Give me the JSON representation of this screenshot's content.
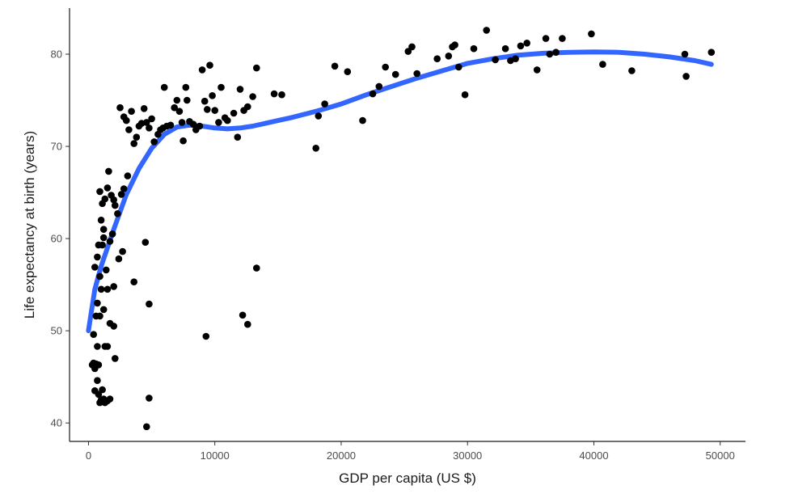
{
  "chart_data": {
    "type": "scatter",
    "title": "",
    "xlabel": "GDP per capita (US $)",
    "ylabel": "Life expectancy at birth (years)",
    "xlim": [
      -1500,
      52000
    ],
    "ylim": [
      38,
      85
    ],
    "xticks": [
      0,
      10000,
      20000,
      30000,
      40000,
      50000
    ],
    "yticks": [
      40,
      50,
      60,
      70,
      80
    ],
    "grid": false,
    "legend": "none",
    "colors": {
      "points": "#000000",
      "smooth": "#3366ff",
      "axis": "#1a1a1a"
    },
    "series": [
      {
        "type": "scatter",
        "points": [
          [
            300,
            46.3
          ],
          [
            400,
            46.5
          ],
          [
            500,
            45.9
          ],
          [
            500,
            43.5
          ],
          [
            600,
            46.4
          ],
          [
            700,
            44.6
          ],
          [
            700,
            48.3
          ],
          [
            800,
            46.3
          ],
          [
            800,
            43.1
          ],
          [
            900,
            42.2
          ],
          [
            1000,
            42.5
          ],
          [
            1100,
            43.6
          ],
          [
            1200,
            42.6
          ],
          [
            1300,
            42.2
          ],
          [
            1500,
            42.4
          ],
          [
            1700,
            42.6
          ],
          [
            400,
            49.6
          ],
          [
            600,
            51.6
          ],
          [
            700,
            53.0
          ],
          [
            900,
            51.6
          ],
          [
            1000,
            54.5
          ],
          [
            1200,
            52.3
          ],
          [
            1300,
            48.3
          ],
          [
            1500,
            48.3
          ],
          [
            1700,
            50.8
          ],
          [
            2000,
            50.5
          ],
          [
            2100,
            47.0
          ],
          [
            500,
            56.9
          ],
          [
            700,
            58.0
          ],
          [
            800,
            59.3
          ],
          [
            900,
            55.9
          ],
          [
            1000,
            62.0
          ],
          [
            1100,
            59.3
          ],
          [
            1200,
            60.1
          ],
          [
            1400,
            56.6
          ],
          [
            1500,
            54.5
          ],
          [
            1700,
            59.7
          ],
          [
            2000,
            54.8
          ],
          [
            2400,
            57.8
          ],
          [
            2700,
            58.6
          ],
          [
            900,
            65.1
          ],
          [
            1100,
            63.8
          ],
          [
            1300,
            64.3
          ],
          [
            1500,
            65.5
          ],
          [
            1600,
            67.3
          ],
          [
            1800,
            64.7
          ],
          [
            2000,
            64.2
          ],
          [
            2100,
            63.6
          ],
          [
            2300,
            62.7
          ],
          [
            2600,
            64.8
          ],
          [
            2800,
            65.4
          ],
          [
            3100,
            66.8
          ],
          [
            1900,
            60.5
          ],
          [
            1200,
            61.0
          ],
          [
            2500,
            74.2
          ],
          [
            2800,
            73.2
          ],
          [
            3000,
            72.8
          ],
          [
            3200,
            71.8
          ],
          [
            3400,
            73.8
          ],
          [
            3600,
            70.3
          ],
          [
            3800,
            71.0
          ],
          [
            4000,
            72.2
          ],
          [
            4200,
            72.5
          ],
          [
            4400,
            74.1
          ],
          [
            4600,
            72.6
          ],
          [
            4800,
            72.0
          ],
          [
            5000,
            73.0
          ],
          [
            3600,
            55.3
          ],
          [
            4500,
            59.6
          ],
          [
            4800,
            52.9
          ],
          [
            4800,
            42.7
          ],
          [
            4600,
            39.6
          ],
          [
            5200,
            70.5
          ],
          [
            5500,
            71.3
          ],
          [
            5700,
            71.8
          ],
          [
            5900,
            72.0
          ],
          [
            6000,
            76.4
          ],
          [
            6200,
            72.2
          ],
          [
            6500,
            72.3
          ],
          [
            6800,
            74.2
          ],
          [
            7000,
            75.0
          ],
          [
            7200,
            73.8
          ],
          [
            7400,
            72.6
          ],
          [
            7500,
            70.6
          ],
          [
            7700,
            76.4
          ],
          [
            7800,
            75.0
          ],
          [
            8000,
            72.7
          ],
          [
            8300,
            72.4
          ],
          [
            8500,
            71.8
          ],
          [
            8800,
            72.2
          ],
          [
            9000,
            78.3
          ],
          [
            9200,
            74.9
          ],
          [
            9400,
            74.0
          ],
          [
            9600,
            78.8
          ],
          [
            9800,
            75.5
          ],
          [
            10000,
            73.9
          ],
          [
            10300,
            72.6
          ],
          [
            10500,
            76.4
          ],
          [
            10800,
            73.1
          ],
          [
            11000,
            72.8
          ],
          [
            11500,
            73.6
          ],
          [
            11800,
            71.0
          ],
          [
            12000,
            76.2
          ],
          [
            12300,
            73.9
          ],
          [
            12600,
            74.3
          ],
          [
            13000,
            75.4
          ],
          [
            13300,
            78.5
          ],
          [
            9300,
            49.4
          ],
          [
            12200,
            51.7
          ],
          [
            12600,
            50.7
          ],
          [
            13300,
            56.8
          ],
          [
            14700,
            75.7
          ],
          [
            15300,
            75.6
          ],
          [
            18000,
            69.8
          ],
          [
            18200,
            73.3
          ],
          [
            18700,
            74.6
          ],
          [
            19500,
            78.7
          ],
          [
            20500,
            78.1
          ],
          [
            21700,
            72.8
          ],
          [
            22500,
            75.7
          ],
          [
            23000,
            76.5
          ],
          [
            23500,
            78.6
          ],
          [
            24300,
            77.8
          ],
          [
            25300,
            80.3
          ],
          [
            25600,
            80.8
          ],
          [
            26000,
            77.9
          ],
          [
            27600,
            79.5
          ],
          [
            28500,
            79.8
          ],
          [
            28800,
            80.8
          ],
          [
            29000,
            81.0
          ],
          [
            29300,
            78.6
          ],
          [
            29800,
            75.6
          ],
          [
            30500,
            80.6
          ],
          [
            31500,
            82.6
          ],
          [
            32200,
            79.4
          ],
          [
            33000,
            80.6
          ],
          [
            33400,
            79.3
          ],
          [
            33800,
            79.5
          ],
          [
            34200,
            80.9
          ],
          [
            34700,
            81.2
          ],
          [
            35500,
            78.3
          ],
          [
            36200,
            81.7
          ],
          [
            36500,
            80.0
          ],
          [
            37000,
            80.2
          ],
          [
            37500,
            81.7
          ],
          [
            39800,
            82.2
          ],
          [
            40700,
            78.9
          ],
          [
            43000,
            78.2
          ],
          [
            47200,
            80.0
          ],
          [
            47300,
            77.6
          ],
          [
            49300,
            80.2
          ]
        ]
      },
      {
        "type": "line",
        "points": [
          [
            0,
            50.0
          ],
          [
            500,
            54.5
          ],
          [
            1000,
            57.0
          ],
          [
            2000,
            61.0
          ],
          [
            3000,
            64.8
          ],
          [
            4000,
            67.6
          ],
          [
            5000,
            69.8
          ],
          [
            6000,
            71.3
          ],
          [
            7000,
            72.1
          ],
          [
            8000,
            72.3
          ],
          [
            9000,
            72.2
          ],
          [
            10000,
            72.0
          ],
          [
            11000,
            71.9
          ],
          [
            12000,
            72.0
          ],
          [
            13000,
            72.2
          ],
          [
            14000,
            72.5
          ],
          [
            15000,
            72.8
          ],
          [
            16000,
            73.1
          ],
          [
            18000,
            73.8
          ],
          [
            20000,
            74.6
          ],
          [
            22000,
            75.6
          ],
          [
            24000,
            76.5
          ],
          [
            26000,
            77.4
          ],
          [
            28000,
            78.2
          ],
          [
            30000,
            79.0
          ],
          [
            32000,
            79.5
          ],
          [
            34000,
            79.9
          ],
          [
            36000,
            80.1
          ],
          [
            38000,
            80.2
          ],
          [
            40000,
            80.25
          ],
          [
            42000,
            80.2
          ],
          [
            44000,
            80.0
          ],
          [
            46000,
            79.7
          ],
          [
            48000,
            79.3
          ],
          [
            49300,
            78.9
          ]
        ]
      }
    ]
  }
}
